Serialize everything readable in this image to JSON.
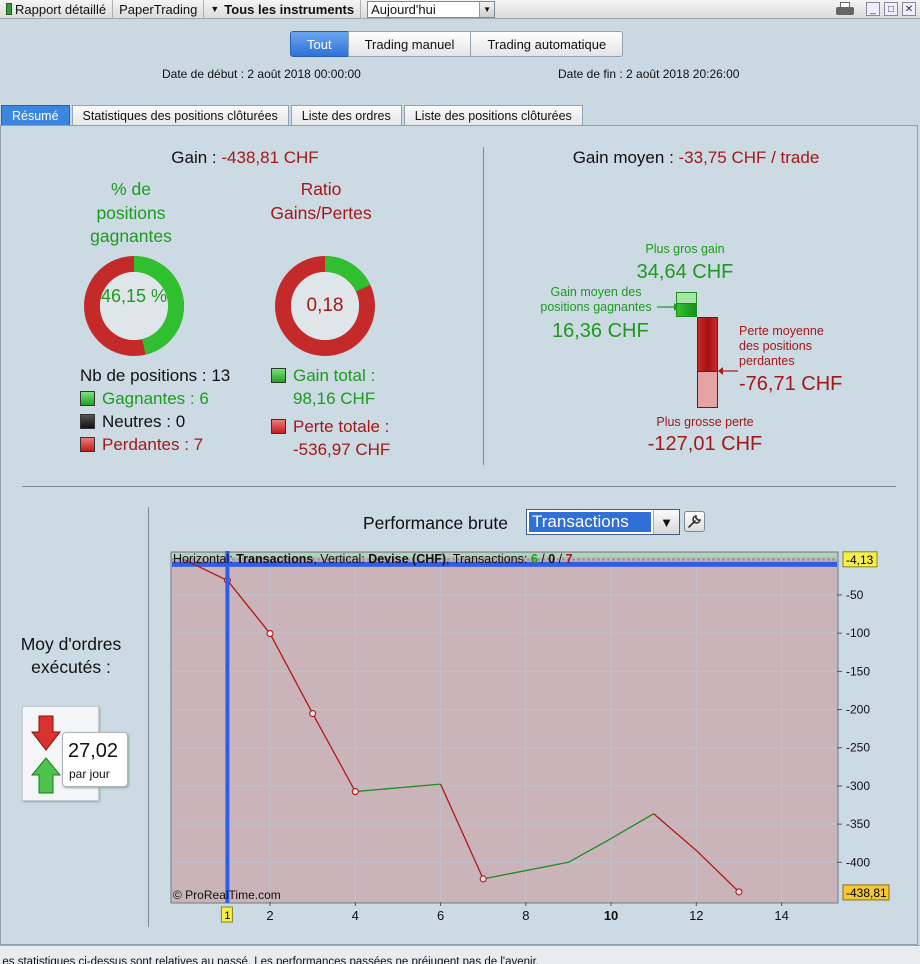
{
  "toolbar": {
    "report": "Rapport détaillé",
    "account": "PaperTrading",
    "instruments": "Tous les instruments",
    "period": "Aujourd'hui"
  },
  "modes": [
    "Tout",
    "Trading manuel",
    "Trading automatique"
  ],
  "dates": {
    "start": "Date de début : 2 août 2018 00:00:00",
    "end": "Date de fin : 2 août 2018 20:26:00"
  },
  "tabs": [
    "Résumé",
    "Statistiques des positions clôturées",
    "Liste des ordres",
    "Liste des positions clôturées"
  ],
  "summary": {
    "gain_label": "Gain : ",
    "gain_value": "-438,81 CHF",
    "win_pct_title": "% de positions gagnantes",
    "win_pct_value": "46,15 %",
    "win_pct": 0.4615,
    "ratio_title": "Ratio Gains/Pertes",
    "ratio_value": "0,18",
    "ratio_fill": 0.18,
    "nb_positions": "Nb de positions : 13",
    "gagnantes": "Gagnantes : 6",
    "neutres": "Neutres : 0",
    "perdantes": "Perdantes : 7",
    "gain_total_label": "Gain total :",
    "gain_total_value": "98,16 CHF",
    "perte_totale_label": "Perte totale :",
    "perte_totale_value": "-536,97 CHF"
  },
  "avg": {
    "label": "Gain moyen : ",
    "value": "-33,75 CHF / trade",
    "best_label": "Plus gros gain",
    "best_value": "34,64 CHF",
    "avg_win_label": "Gain moyen des positions gagnantes",
    "avg_win_value": "16,36 CHF",
    "avg_loss_label": "Perte moyenne des positions perdantes",
    "avg_loss_value": "-76,71 CHF",
    "worst_label": "Plus grosse perte",
    "worst_value": "-127,01 CHF"
  },
  "orders": {
    "label": "Moy d'ordres exécutés :",
    "value": "27,02",
    "unit": "par jour"
  },
  "perf": {
    "title": "Performance brute",
    "dropdown": "Transactions",
    "header_prefix": "Horizontal: ",
    "header_h": "Transactions",
    "header_mid": ", Vertical: ",
    "header_v": "Devise (CHF)",
    "header_tr": ", Transactions: ",
    "tr_win": "6",
    "tr_slash1": " / ",
    "tr_neutral": "0",
    "tr_slash2": " / ",
    "tr_loss": "7",
    "copyright": "© ProRealTime.com",
    "top_tag": "-4,13",
    "last_tag": "-438,81",
    "hidden_tick": "10",
    "cursor_tag": "1"
  },
  "chart_data": {
    "type": "line",
    "xlabel": "Transactions",
    "ylabel": "Devise (CHF)",
    "x": [
      0,
      1,
      2,
      3,
      4,
      6,
      7,
      9,
      10,
      11,
      12,
      13
    ],
    "y": [
      -4.13,
      -30.9,
      -100.5,
      -205.3,
      -307.4,
      -297.7,
      -421.7,
      -400,
      -369,
      -336.4,
      -384.5,
      -438.81
    ],
    "segment_colors": [
      "red",
      "red",
      "red",
      "red",
      "green",
      "red",
      "green",
      "green",
      "green",
      "red",
      "red"
    ],
    "markers_at": [
      1,
      2,
      3,
      4,
      7,
      13
    ],
    "xlim": [
      -0.3,
      15.3
    ],
    "ylim": [
      -452,
      5
    ],
    "x_ticks": [
      "2",
      "4",
      "6",
      "8",
      "10",
      "12",
      "14"
    ],
    "y_ticks": [
      "-50",
      "-100",
      "-150",
      "-200",
      "-250",
      "-300",
      "-350",
      "-400"
    ],
    "bold_x_tick": "10",
    "cursor_x": 1,
    "grid": true,
    "colors": {
      "gain": "#1e8c1e",
      "loss": "#b01818",
      "cursor": "#2e5fe6"
    }
  },
  "bottom_text": "Les statistiques ci-dessus sont relatives au passé. Les performances passées ne préjugent pas de l'avenir."
}
